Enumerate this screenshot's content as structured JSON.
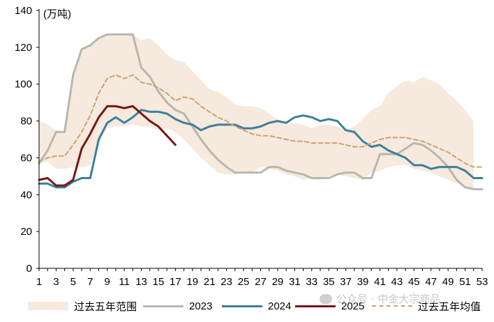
{
  "chart_data": {
    "type": "line",
    "unit_label": "(万吨)",
    "ylim": [
      0,
      140
    ],
    "yticks": [
      0,
      20,
      40,
      60,
      80,
      100,
      120,
      140
    ],
    "xlim": [
      1,
      53
    ],
    "xticks": [
      1,
      3,
      5,
      7,
      9,
      11,
      13,
      15,
      17,
      19,
      21,
      23,
      25,
      27,
      29,
      31,
      33,
      35,
      37,
      39,
      41,
      43,
      45,
      47,
      49,
      51,
      53
    ],
    "range_band": {
      "name": "过去五年范围",
      "color": "#f6e9dd",
      "upper": [
        80,
        78,
        75,
        74,
        105,
        119,
        121,
        125,
        127,
        127,
        127,
        127,
        124,
        125,
        121,
        116,
        113,
        112,
        107,
        102,
        97,
        96,
        93,
        89,
        88,
        88,
        87,
        84,
        81,
        79,
        79,
        78,
        76,
        78,
        78,
        77,
        75,
        77,
        81,
        86,
        88,
        95,
        99,
        102,
        101,
        104,
        102,
        100,
        95,
        91,
        86,
        80
      ],
      "lower": [
        57,
        58,
        54,
        54,
        55,
        55,
        56,
        68,
        76,
        77,
        77,
        78,
        77,
        77,
        75,
        76,
        74,
        70,
        65,
        60,
        56,
        52,
        51,
        51,
        52,
        52,
        55,
        54,
        53,
        51,
        50,
        48,
        49,
        48,
        50,
        51,
        50,
        49,
        48,
        52,
        53,
        55,
        56,
        56,
        54,
        53,
        52,
        50,
        48,
        46,
        44,
        43
      ]
    },
    "series": [
      {
        "name": "2023",
        "color": "#b9b7ad",
        "width": 3,
        "dash": false,
        "values": [
          57,
          64,
          74,
          74,
          105,
          119,
          121,
          125,
          127,
          127,
          127,
          127,
          109,
          104,
          96,
          90,
          86,
          84,
          77,
          70,
          64,
          59,
          55,
          52,
          52,
          52,
          52,
          55,
          55,
          53,
          52,
          51,
          49,
          49,
          49,
          51,
          52,
          52,
          49,
          49,
          62,
          62,
          62,
          65,
          68,
          67,
          64,
          60,
          55,
          48,
          44,
          43,
          43
        ]
      },
      {
        "name": "2024",
        "color": "#3d7f99",
        "width": 3,
        "dash": false,
        "values": [
          46,
          46,
          44,
          44,
          47,
          49,
          49,
          70,
          79,
          82,
          79,
          82,
          86,
          85,
          85,
          84,
          81,
          79,
          78,
          75,
          77,
          78,
          78,
          78,
          76,
          76,
          77,
          79,
          80,
          79,
          82,
          83,
          82,
          80,
          81,
          80,
          75,
          74,
          69,
          66,
          67,
          64,
          62,
          60,
          56,
          56,
          54,
          55,
          55,
          55,
          53,
          49,
          49
        ]
      },
      {
        "name": "2025",
        "color": "#7a1414",
        "width": 3,
        "dash": false,
        "values": [
          48,
          49,
          45,
          45,
          48,
          65,
          73,
          82,
          88,
          88,
          87,
          88,
          84,
          80,
          77,
          72,
          67
        ]
      },
      {
        "name": "过去五年均值",
        "color": "#c9a36d",
        "width": 2,
        "dash": true,
        "values": [
          58,
          60,
          61,
          61,
          67,
          74,
          83,
          95,
          103,
          105,
          103,
          105,
          101,
          100,
          98,
          95,
          91,
          93,
          92,
          88,
          85,
          82,
          80,
          77,
          75,
          73,
          72,
          72,
          71,
          70,
          69,
          69,
          68,
          68,
          68,
          68,
          67,
          66,
          66,
          68,
          70,
          71,
          71,
          71,
          70,
          69,
          67,
          65,
          63,
          60,
          57,
          55,
          55
        ]
      }
    ],
    "legend": [
      {
        "label": "过去五年范围",
        "kind": "band",
        "color": "#f6e9dd"
      },
      {
        "label": "2023",
        "kind": "line",
        "color": "#b9b7ad"
      },
      {
        "label": "2024",
        "kind": "line",
        "color": "#3d7f99"
      },
      {
        "label": "2025",
        "kind": "line",
        "color": "#7a1414"
      },
      {
        "label": "过去五年均值",
        "kind": "dash",
        "color": "#c9a36d"
      }
    ]
  },
  "watermark": "公众号 · 中金大宗商品"
}
